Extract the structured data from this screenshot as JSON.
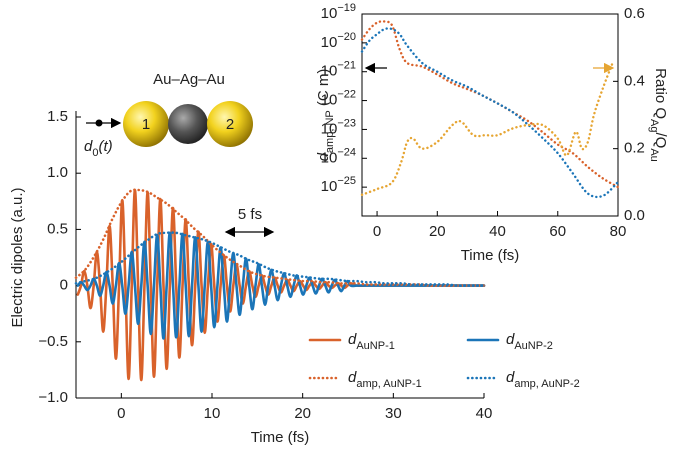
{
  "chart_data": [
    {
      "type": "line",
      "xlabel": "Time (fs)",
      "ylabel": "Electric dipoles (a.u.)",
      "xlim": [
        -5,
        40
      ],
      "xticks": [
        0,
        10,
        20,
        30,
        40
      ],
      "ylim": [
        -1,
        1.5
      ],
      "yticks": [
        {
          "value": -1,
          "label": "−1.0"
        },
        {
          "value": -0.5,
          "label": "−0.5"
        },
        0,
        {
          "value": 0.5,
          "label": "0.5"
        },
        {
          "value": 1,
          "label": "1.0"
        },
        {
          "value": 1.5,
          "label": "1.5"
        }
      ],
      "legend": "lower right",
      "annotations": {
        "molecule": "Au–Ag–Au",
        "particle_1": "1",
        "particle_2": "2",
        "dipole": [
          "d",
          "0",
          "(t)"
        ],
        "duration": "5 fs"
      },
      "x": [
        -4.8,
        -4.45,
        -4.1,
        -3.75,
        -3.4,
        -3.05,
        -2.7,
        -2.35,
        -2,
        -1.65,
        -1.3,
        -0.95,
        -0.6,
        -0.25,
        0.1,
        0.45,
        0.8,
        1.15,
        1.5,
        1.85,
        2.2,
        2.55,
        2.9,
        3.25,
        3.6,
        3.95,
        4.3,
        4.65,
        5,
        5.35,
        5.7,
        6.05,
        6.4,
        6.75,
        7.1,
        7.45,
        7.8,
        8.15,
        8.5,
        8.85,
        9.2,
        9.55,
        9.9,
        10.25,
        10.6,
        10.95,
        11.3,
        11.65,
        12,
        12.35,
        12.7,
        13.05,
        13.4,
        13.75,
        14.1,
        14.45,
        14.8,
        15.15,
        15.5,
        15.85,
        16.2,
        16.55,
        16.9,
        17.25,
        17.6,
        17.95,
        18.3,
        18.65,
        19,
        19.35,
        19.7,
        20.05,
        20.4,
        20.75,
        21.1,
        21.45,
        21.8,
        22.15,
        22.5,
        22.85,
        23.2,
        23.55,
        23.9,
        24.25,
        24.6,
        24.95,
        25.3,
        26,
        27,
        28,
        29,
        30,
        31,
        32,
        33,
        34,
        35,
        36,
        37,
        38,
        39,
        40
      ],
      "series": [
        {
          "name": [
            "d",
            "AuNP-1"
          ],
          "color": "#d9622b",
          "style": "solid",
          "values": [
            -0.08,
            0,
            0.13,
            0,
            -0.2,
            0,
            0.3,
            0,
            -0.41,
            0,
            0.53,
            0,
            -0.65,
            0,
            0.76,
            0,
            -0.83,
            0,
            0.85,
            0,
            -0.84,
            0,
            0.83,
            0,
            -0.81,
            0,
            0.77,
            0,
            -0.74,
            0,
            0.69,
            0,
            -0.64,
            0,
            0.59,
            0,
            -0.53,
            0,
            0.48,
            0,
            -0.42,
            0,
            0.37,
            0,
            -0.32,
            0,
            0.27,
            0,
            -0.23,
            0,
            0.19,
            0,
            -0.16,
            0,
            0.13,
            0,
            -0.1,
            0,
            0.09,
            0,
            -0.08,
            0,
            0.07,
            0,
            -0.06,
            0,
            0.05,
            0,
            -0.05,
            0,
            0.04,
            0,
            -0.04,
            0,
            0.03,
            0,
            -0.03,
            0,
            0.03,
            0,
            -0.02,
            0,
            0.02,
            0,
            -0.02,
            0,
            0.02,
            0,
            0,
            0,
            0,
            0,
            0,
            0,
            0,
            0,
            0,
            0,
            0,
            0,
            0,
            0
          ]
        },
        {
          "name": [
            "d",
            "AuNP-2"
          ],
          "color": "#1b75b8",
          "style": "solid",
          "values": [
            0,
            0.03,
            0,
            -0.04,
            0,
            0.06,
            0,
            -0.09,
            0,
            0.12,
            0,
            -0.16,
            0,
            0.2,
            0,
            -0.25,
            0,
            0.3,
            0,
            -0.34,
            0,
            0.39,
            0,
            -0.43,
            0,
            0.45,
            0,
            -0.47,
            0,
            0.47,
            0,
            -0.46,
            0,
            0.46,
            0,
            -0.45,
            0,
            0.43,
            0,
            -0.41,
            0,
            0.39,
            0,
            -0.37,
            0,
            0.34,
            0,
            -0.32,
            0,
            0.29,
            0,
            -0.26,
            0,
            0.24,
            0,
            -0.21,
            0,
            0.19,
            0,
            -0.17,
            0,
            0.14,
            0,
            -0.13,
            0,
            0.11,
            0,
            -0.1,
            0,
            0.09,
            0,
            -0.08,
            0,
            0.07,
            0,
            -0.07,
            0,
            0.06,
            0,
            -0.06,
            0,
            0.05,
            0,
            -0.05,
            0,
            0.04,
            0,
            0,
            0,
            0,
            0,
            0,
            0,
            0,
            0,
            0,
            0,
            0,
            0,
            0,
            0,
            0
          ]
        },
        {
          "name": [
            "d",
            "amp, AuNP-1"
          ],
          "color": "#d9622b",
          "style": "dotted",
          "x": [
            -5,
            -4,
            -3,
            -2,
            -1,
            0,
            1,
            2,
            3,
            4,
            5,
            6,
            7,
            8,
            9,
            10,
            11,
            12,
            13,
            14,
            15,
            16,
            17,
            18,
            19,
            20,
            21,
            22,
            23,
            24,
            25,
            26,
            27,
            28,
            29,
            30,
            31,
            32,
            33,
            34,
            35,
            36,
            37,
            38,
            39,
            40
          ],
          "values": [
            0.07,
            0.14,
            0.26,
            0.41,
            0.59,
            0.74,
            0.84,
            0.85,
            0.83,
            0.78,
            0.73,
            0.66,
            0.59,
            0.51,
            0.44,
            0.36,
            0.29,
            0.23,
            0.18,
            0.13,
            0.1,
            0.08,
            0.07,
            0.06,
            0.05,
            0.04,
            0.04,
            0.03,
            0.03,
            0.02,
            0.02,
            0.02,
            0.01,
            0.01,
            0.01,
            0.01,
            0.01,
            0.01,
            0.01,
            0,
            0,
            0,
            0,
            0,
            0,
            0
          ]
        },
        {
          "name": [
            "d",
            "amp, AuNP-2"
          ],
          "color": "#1b75b8",
          "style": "dotted",
          "x": [
            -5,
            -4,
            -3,
            -2,
            -1,
            0,
            1,
            2,
            3,
            4,
            5,
            6,
            7,
            8,
            9,
            10,
            11,
            12,
            13,
            14,
            15,
            16,
            17,
            18,
            19,
            20,
            21,
            22,
            23,
            24,
            25,
            26,
            27,
            28,
            29,
            30,
            31,
            32,
            33,
            34,
            35,
            36,
            37,
            38,
            39,
            40
          ],
          "values": [
            0.02,
            0.04,
            0.06,
            0.1,
            0.15,
            0.21,
            0.28,
            0.35,
            0.41,
            0.46,
            0.47,
            0.47,
            0.45,
            0.43,
            0.41,
            0.38,
            0.34,
            0.3,
            0.27,
            0.23,
            0.2,
            0.16,
            0.13,
            0.11,
            0.09,
            0.08,
            0.07,
            0.06,
            0.06,
            0.05,
            0.04,
            0.04,
            0.03,
            0.03,
            0.02,
            0.02,
            0.02,
            0.01,
            0.01,
            0.01,
            0.01,
            0.01,
            0,
            0,
            0,
            0
          ]
        }
      ]
    },
    {
      "type": "line",
      "xlabel": "Time (fs)",
      "ylabel": [
        "d",
        "amp, NP",
        " (C m)"
      ],
      "y2label": [
        "Ratio Q",
        "Ag",
        "/Q",
        "Au"
      ],
      "xlim": [
        -5,
        80
      ],
      "xticks": [
        0,
        20,
        40,
        60,
        80
      ],
      "ylog": true,
      "ylim": [
        1e-26,
        1e-19
      ],
      "yticks": [
        {
          "value": 1e-25,
          "label": [
            "10",
            "−25"
          ]
        },
        {
          "value": 1e-24,
          "label": [
            "10",
            "−24"
          ]
        },
        {
          "value": 1e-23,
          "label": [
            "10",
            "−23"
          ]
        },
        {
          "value": 1e-22,
          "label": [
            "10",
            "−22"
          ]
        },
        {
          "value": 1e-21,
          "label": [
            "10",
            "−21"
          ]
        },
        {
          "value": 1e-20,
          "label": [
            "10",
            "−20"
          ]
        },
        {
          "value": 1e-19,
          "label": [
            "10",
            "−19"
          ]
        }
      ],
      "y2lim": [
        0,
        0.6
      ],
      "y2ticks": [
        {
          "value": 0,
          "label": "0.0"
        },
        {
          "value": 0.2,
          "label": "0.2"
        },
        {
          "value": 0.4,
          "label": "0.4"
        },
        {
          "value": 0.6,
          "label": "0.6"
        }
      ],
      "series": [
        {
          "color": "#d9622b",
          "style": "dotted",
          "x": [
            -5,
            -2.5,
            0,
            2.5,
            5,
            7.5,
            10,
            15,
            20,
            25,
            30,
            35,
            40,
            45,
            50,
            55,
            60,
            65,
            70,
            75,
            80
          ],
          "values": [
            1.3e-20,
            3e-20,
            5e-20,
            5.5e-20,
            4e-20,
            6e-21,
            2e-21,
            1.5e-21,
            8e-22,
            4e-22,
            2.5e-22,
            1.5e-22,
            8e-23,
            4e-23,
            2e-23,
            8e-24,
            3e-24,
            1.5e-24,
            5e-25,
            2e-25,
            1e-25
          ]
        },
        {
          "color": "#1b75b8",
          "style": "dotted",
          "x": [
            -5,
            -2.5,
            0,
            2.5,
            5,
            7.5,
            10,
            15,
            20,
            25,
            30,
            35,
            40,
            45,
            50,
            55,
            60,
            65,
            70,
            75,
            80
          ],
          "values": [
            5e-21,
            1.2e-20,
            2e-20,
            3e-20,
            3e-20,
            2e-20,
            8e-21,
            2e-21,
            1e-21,
            5e-22,
            3e-22,
            1.5e-22,
            8e-23,
            4e-23,
            1.5e-23,
            5e-24,
            1.5e-24,
            3e-25,
            6e-26,
            5e-26,
            1.5e-25
          ]
        },
        {
          "color": "#e6a532",
          "style": "dotted",
          "axis": "y2",
          "x": [
            -5,
            0,
            5,
            8,
            10,
            12,
            15,
            20,
            25,
            28,
            32,
            36,
            40,
            45,
            50,
            55,
            60,
            63,
            66,
            68,
            70,
            72,
            75,
            78
          ],
          "values": [
            0.063,
            0.08,
            0.1,
            0.16,
            0.22,
            0.23,
            0.2,
            0.22,
            0.27,
            0.28,
            0.24,
            0.24,
            0.24,
            0.26,
            0.27,
            0.27,
            0.23,
            0.18,
            0.25,
            0.2,
            0.22,
            0.3,
            0.38,
            0.45
          ]
        }
      ]
    }
  ]
}
